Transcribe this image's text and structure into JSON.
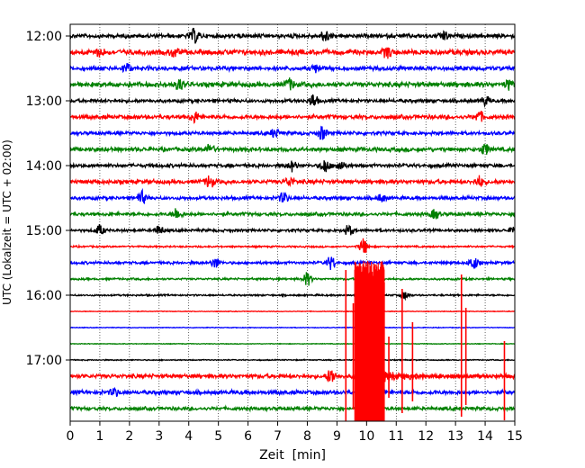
{
  "chart_data": {
    "type": "line",
    "chart_kind": "helicorder seismogram (one trace row per 15 minutes)",
    "xlabel": "Zeit  [min]",
    "ylabel": "UTC (Lokalzeit = UTC + 02:00)",
    "xlim": [
      0,
      15
    ],
    "x_ticks": [
      "0",
      "1",
      "2",
      "3",
      "4",
      "5",
      "6",
      "7",
      "8",
      "9",
      "10",
      "11",
      "12",
      "13",
      "14",
      "15"
    ],
    "y_ticks": [
      "12:00",
      "13:00",
      "14:00",
      "15:00",
      "16:00",
      "17:00"
    ],
    "grid": "vertical dotted lines at every minute",
    "color_cycle": [
      "#000000",
      "#ff0000",
      "#0000ff",
      "#008000"
    ],
    "rows": [
      {
        "start": "12:00",
        "color": "#000000",
        "events": [
          [
            4.2,
            0.45
          ],
          [
            8.6,
            0.4
          ],
          [
            12.6,
            0.3
          ]
        ],
        "noise": 0.12
      },
      {
        "start": "12:15",
        "color": "#ff0000",
        "events": [
          [
            1.0,
            0.25
          ],
          [
            3.5,
            0.3
          ],
          [
            10.7,
            0.35
          ]
        ],
        "noise": 0.15
      },
      {
        "start": "12:30",
        "color": "#0000ff",
        "events": [
          [
            1.9,
            0.3
          ],
          [
            8.3,
            0.25
          ]
        ],
        "noise": 0.12
      },
      {
        "start": "12:45",
        "color": "#008000",
        "events": [
          [
            3.7,
            0.35
          ],
          [
            7.4,
            0.35
          ],
          [
            14.8,
            0.3
          ]
        ],
        "noise": 0.14
      },
      {
        "start": "13:00",
        "color": "#000000",
        "events": [
          [
            8.2,
            0.45
          ],
          [
            14.0,
            0.3
          ]
        ],
        "noise": 0.1
      },
      {
        "start": "13:15",
        "color": "#ff0000",
        "events": [
          [
            4.2,
            0.35
          ],
          [
            13.8,
            0.35
          ]
        ],
        "noise": 0.12
      },
      {
        "start": "13:30",
        "color": "#0000ff",
        "events": [
          [
            6.9,
            0.3
          ],
          [
            8.5,
            0.45
          ]
        ],
        "noise": 0.1
      },
      {
        "start": "13:45",
        "color": "#008000",
        "events": [
          [
            4.7,
            0.3
          ],
          [
            14.0,
            0.35
          ]
        ],
        "noise": 0.12
      },
      {
        "start": "14:00",
        "color": "#000000",
        "events": [
          [
            7.5,
            0.35
          ],
          [
            8.6,
            0.45
          ],
          [
            9.1,
            0.35
          ]
        ],
        "noise": 0.1
      },
      {
        "start": "14:15",
        "color": "#ff0000",
        "events": [
          [
            4.7,
            0.4
          ],
          [
            7.4,
            0.3
          ],
          [
            13.8,
            0.35
          ]
        ],
        "noise": 0.12
      },
      {
        "start": "14:30",
        "color": "#0000ff",
        "events": [
          [
            2.4,
            0.45
          ],
          [
            7.2,
            0.35
          ],
          [
            10.5,
            0.25
          ]
        ],
        "noise": 0.1
      },
      {
        "start": "14:45",
        "color": "#008000",
        "events": [
          [
            3.6,
            0.4
          ],
          [
            12.3,
            0.3
          ]
        ],
        "noise": 0.1
      },
      {
        "start": "15:00",
        "color": "#000000",
        "events": [
          [
            1.0,
            0.35
          ],
          [
            3.0,
            0.3
          ],
          [
            9.4,
            0.35
          ],
          [
            15.0,
            0.35
          ]
        ],
        "noise": 0.08
      },
      {
        "start": "15:15",
        "color": "#ff0000",
        "events": [
          [
            9.9,
            0.55
          ]
        ],
        "noise": 0.05
      },
      {
        "start": "15:30",
        "color": "#0000ff",
        "events": [
          [
            4.9,
            0.35
          ],
          [
            8.8,
            0.45
          ],
          [
            13.6,
            0.45
          ]
        ],
        "noise": 0.08
      },
      {
        "start": "15:45",
        "color": "#008000",
        "events": [
          [
            8.0,
            0.45
          ]
        ],
        "noise": 0.06
      },
      {
        "start": "16:00",
        "color": "#000000",
        "events": [
          [
            11.3,
            0.25
          ]
        ],
        "noise": 0.05
      },
      {
        "start": "16:15",
        "color": "#ff0000",
        "events": [],
        "noise": 0.02
      },
      {
        "start": "16:30",
        "color": "#0000ff",
        "events": [],
        "noise": 0.02
      },
      {
        "start": "16:45",
        "color": "#008000",
        "events": [],
        "noise": 0.02
      },
      {
        "start": "17:00",
        "color": "#000000",
        "events": [],
        "noise": 0.03
      },
      {
        "start": "17:15",
        "color": "#ff0000",
        "events": [
          [
            8.8,
            0.5
          ]
        ],
        "noise": 0.12
      },
      {
        "start": "17:30",
        "color": "#0000ff",
        "events": [
          [
            1.5,
            0.25
          ]
        ],
        "noise": 0.12
      },
      {
        "start": "17:45",
        "color": "#008000",
        "events": [
          [
            10.0,
            0.4
          ]
        ],
        "noise": 0.1
      }
    ],
    "large_event": {
      "row_start": "17:15",
      "color": "#ff0000",
      "x_start": 9.6,
      "x_end": 10.6,
      "spikes": [
        9.3,
        9.55,
        10.75,
        11.2,
        11.55,
        13.2,
        13.35,
        14.65
      ]
    }
  }
}
